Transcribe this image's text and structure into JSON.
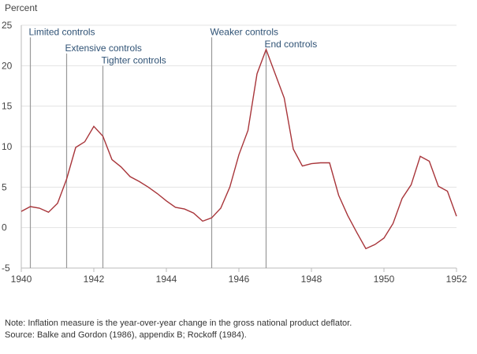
{
  "chart_data": {
    "type": "line",
    "ylabel": "Percent",
    "ylim": [
      -5,
      25
    ],
    "xlim": [
      1940,
      1952
    ],
    "yticks": [
      "25",
      "20",
      "15",
      "10",
      "5",
      "0",
      "-5"
    ],
    "xticks": [
      "1940",
      "1942",
      "1944",
      "1946",
      "1948",
      "1950",
      "1952"
    ],
    "grid": true,
    "series": [
      {
        "name": "Inflation",
        "color": "#a8353a",
        "x": [
          1940,
          1940.25,
          1940.5,
          1940.75,
          1941,
          1941.25,
          1941.5,
          1941.75,
          1942,
          1942.25,
          1942.5,
          1942.75,
          1943,
          1943.25,
          1943.5,
          1943.75,
          1944,
          1944.25,
          1944.5,
          1944.75,
          1945,
          1945.25,
          1945.5,
          1945.75,
          1946,
          1946.25,
          1946.5,
          1946.75,
          1947,
          1947.25,
          1947.5,
          1947.75,
          1948,
          1948.25,
          1948.5,
          1948.75,
          1949,
          1949.25,
          1949.5,
          1949.75,
          1950,
          1950.25,
          1950.5,
          1950.75,
          1951,
          1951.25,
          1951.5,
          1951.75,
          1952
        ],
        "y": [
          2.0,
          2.6,
          2.4,
          1.9,
          3.0,
          6.0,
          9.9,
          10.6,
          12.5,
          11.3,
          8.4,
          7.5,
          6.3,
          5.7,
          5.0,
          4.2,
          3.3,
          2.5,
          2.3,
          1.8,
          0.8,
          1.2,
          2.4,
          5.0,
          9.0,
          12.0,
          19.0,
          22.0,
          19.0,
          16.0,
          9.7,
          7.6,
          7.9,
          8.0,
          8.0,
          4.0,
          1.5,
          -0.6,
          -2.6,
          -2.1,
          -1.3,
          0.5,
          3.6,
          5.3,
          8.8,
          8.2,
          5.1,
          4.5,
          1.4
        ]
      }
    ],
    "annotations": [
      {
        "label": "Limited controls",
        "x": 1940.25,
        "top": 23.5
      },
      {
        "label": "Extensive controls",
        "x": 1941.25,
        "top": 21.5
      },
      {
        "label": "Tighter controls",
        "x": 1942.25,
        "top": 20.0
      },
      {
        "label": "Weaker controls",
        "x": 1945.25,
        "top": 23.5
      },
      {
        "label": "End controls",
        "x": 1946.75,
        "top": 22.0
      }
    ]
  },
  "notes": {
    "note": "Note: Inflation measure is the year-over-year change in the gross national product deflator.",
    "source": "Source: Balke and Gordon (1986), appendix B; Rockoff (1984)."
  }
}
